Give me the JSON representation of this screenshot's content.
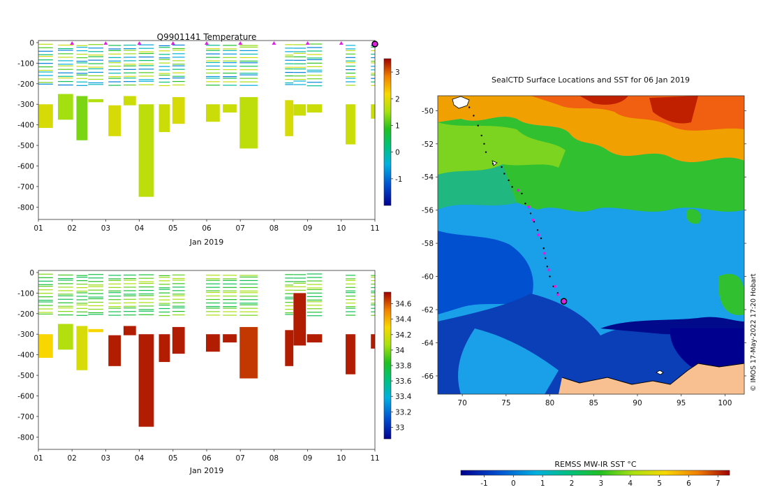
{
  "chart_data": [
    {
      "type": "heatmap",
      "title": "Q9901141  Temperature",
      "xlabel": "Jan 2019",
      "x_ticks": [
        "01",
        "02",
        "03",
        "04",
        "05",
        "06",
        "07",
        "08",
        "09",
        "10",
        "11"
      ],
      "y_ticks": [
        "0",
        "-100",
        "-200",
        "-300",
        "-400",
        "-500",
        "-600",
        "-700",
        "-800"
      ],
      "ylim": [
        -860,
        10
      ],
      "colorbar": {
        "ticks": [
          "3",
          "2",
          "1",
          "0",
          "-1"
        ],
        "range": [
          -2,
          3.5
        ]
      },
      "markers_day": [
        2,
        3,
        4,
        5,
        6,
        7,
        8,
        9,
        10
      ],
      "current_marker_day": 11,
      "profiles": [
        {
          "day": 1.0,
          "width": 0.55,
          "surface": [
            -195,
            -210
          ],
          "bottom": -415,
          "deep": [
            -300,
            -415
          ],
          "deep_value": 1.9
        },
        {
          "day": 1.6,
          "width": 0.55,
          "surface": [
            -10,
            -60,
            -120
          ],
          "bottom": -375,
          "deep": [
            -250,
            -375
          ],
          "deep_value": 1.5
        },
        {
          "day": 2.15,
          "width": 0.4,
          "surface": [
            -30,
            -110,
            -140
          ],
          "bottom": -475,
          "deep": [
            -260,
            -475
          ],
          "deep_value": 1.3
        },
        {
          "day": 2.5,
          "width": 0.55,
          "surface": [
            -20,
            -90
          ],
          "bottom": -290,
          "deep": [
            -275,
            -290
          ],
          "deep_value": 1.6
        },
        {
          "day": 3.1,
          "width": 0.45,
          "surface": [
            -5,
            -60,
            -150
          ],
          "bottom": -455,
          "deep": [
            -305,
            -455
          ],
          "deep_value": 1.9
        },
        {
          "day": 3.55,
          "width": 0.45,
          "surface": [
            -60,
            -140
          ],
          "bottom": -305,
          "deep": [
            -260,
            -305
          ],
          "deep_value": 1.8
        },
        {
          "day": 4.0,
          "width": 0.55,
          "surface": [
            -20,
            -90
          ],
          "bottom": -750,
          "deep": [
            -300,
            -750
          ],
          "deep_value": 1.7
        },
        {
          "day": 4.6,
          "width": 0.4,
          "surface": [
            -100,
            -180
          ],
          "bottom": -435,
          "deep": [
            -300,
            -435
          ],
          "deep_value": 1.8
        },
        {
          "day": 5.0,
          "width": 0.45,
          "surface": [
            -5,
            -110
          ],
          "bottom": -395,
          "deep": [
            -265,
            -395
          ],
          "deep_value": 1.9
        },
        {
          "day": 6.0,
          "width": 0.5,
          "surface": [
            -5,
            -100
          ],
          "bottom": -385,
          "deep": [
            -300,
            -385
          ],
          "deep_value": 1.8
        },
        {
          "day": 6.5,
          "width": 0.5,
          "surface": [
            -60,
            -130
          ],
          "bottom": -340,
          "deep": [
            -300,
            -340
          ],
          "deep_value": 1.8
        },
        {
          "day": 7.0,
          "width": 0.65,
          "surface": [
            -5,
            -90
          ],
          "bottom": -515,
          "deep": [
            -265,
            -515
          ],
          "deep_value": 1.7
        },
        {
          "day": 8.35,
          "width": 0.3,
          "surface": [
            -60,
            -120
          ],
          "bottom": -455,
          "deep": [
            -280,
            -455
          ],
          "deep_value": 1.9
        },
        {
          "day": 8.6,
          "width": 0.45,
          "surface": [
            0,
            -60,
            -120,
            -200,
            -300
          ],
          "bottom": -355,
          "deep": [
            -300,
            -355
          ],
          "deep_value": 1.8
        },
        {
          "day": 9.0,
          "width": 0.55,
          "surface": [
            -5,
            -100
          ],
          "bottom": -340,
          "deep": [
            -300,
            -340
          ],
          "deep_value": 1.8
        },
        {
          "day": 10.15,
          "width": 0.35,
          "surface": [
            -10,
            -80
          ],
          "bottom": -495,
          "deep": [
            -300,
            -495
          ],
          "deep_value": 1.8
        },
        {
          "day": 10.9,
          "width": 0.15,
          "surface": [
            -10
          ],
          "bottom": -370,
          "deep": [
            -300,
            -370
          ],
          "deep_value": 1.8
        }
      ]
    },
    {
      "type": "heatmap",
      "title": "",
      "xlabel": "Jan 2019",
      "x_ticks": [
        "01",
        "02",
        "03",
        "04",
        "05",
        "06",
        "07",
        "08",
        "09",
        "10",
        "11"
      ],
      "y_ticks": [
        "0",
        "-100",
        "-200",
        "-300",
        "-400",
        "-500",
        "-600",
        "-700",
        "-800"
      ],
      "ylim": [
        -860,
        10
      ],
      "colorbar": {
        "ticks": [
          "34.6",
          "34.4",
          "34.2",
          "34",
          "33.8",
          "33.6",
          "33.4",
          "33.2",
          "33"
        ],
        "range": [
          32.85,
          34.75
        ]
      },
      "profiles": [
        {
          "day": 1.0,
          "width": 0.55,
          "bottom": -415,
          "deep": [
            -300,
            -415
          ],
          "deep_value": 34.3
        },
        {
          "day": 1.6,
          "width": 0.55,
          "bottom": -375,
          "deep": [
            -250,
            -375
          ],
          "deep_value": 34.1
        },
        {
          "day": 2.15,
          "width": 0.4,
          "bottom": -475,
          "deep": [
            -260,
            -475
          ],
          "deep_value": 34.2
        },
        {
          "day": 2.5,
          "width": 0.55,
          "bottom": -290,
          "deep": [
            -275,
            -290
          ],
          "deep_value": 34.3
        },
        {
          "day": 3.1,
          "width": 0.45,
          "bottom": -455,
          "deep": [
            -305,
            -455
          ],
          "deep_value": 34.7
        },
        {
          "day": 3.55,
          "width": 0.45,
          "bottom": -305,
          "deep": [
            -260,
            -305
          ],
          "deep_value": 34.7
        },
        {
          "day": 4.0,
          "width": 0.55,
          "bottom": -750,
          "deep": [
            -300,
            -750
          ],
          "deep_value": 34.7
        },
        {
          "day": 4.6,
          "width": 0.4,
          "bottom": -435,
          "deep": [
            -300,
            -435
          ],
          "deep_value": 34.7
        },
        {
          "day": 5.0,
          "width": 0.45,
          "bottom": -395,
          "deep": [
            -265,
            -395
          ],
          "deep_value": 34.7
        },
        {
          "day": 6.0,
          "width": 0.5,
          "bottom": -385,
          "deep": [
            -300,
            -385
          ],
          "deep_value": 34.7
        },
        {
          "day": 6.5,
          "width": 0.5,
          "bottom": -340,
          "deep": [
            -300,
            -340
          ],
          "deep_value": 34.7
        },
        {
          "day": 7.0,
          "width": 0.65,
          "bottom": -515,
          "deep": [
            -265,
            -515
          ],
          "deep_value": 34.65
        },
        {
          "day": 8.35,
          "width": 0.3,
          "bottom": -455,
          "deep": [
            -280,
            -455
          ],
          "deep_value": 34.7
        },
        {
          "day": 8.6,
          "width": 0.45,
          "bottom": -355,
          "deep": [
            -100,
            -355
          ],
          "deep_value": 34.7
        },
        {
          "day": 9.0,
          "width": 0.55,
          "bottom": -340,
          "deep": [
            -300,
            -340
          ],
          "deep_value": 34.7
        },
        {
          "day": 10.15,
          "width": 0.35,
          "bottom": -495,
          "deep": [
            -300,
            -495
          ],
          "deep_value": 34.7
        },
        {
          "day": 10.9,
          "width": 0.15,
          "bottom": -370,
          "deep": [
            -300,
            -370
          ],
          "deep_value": 34.7
        }
      ]
    },
    {
      "type": "heatmap",
      "title": "SealCTD Surface Locations and SST for 06 Jan 2019",
      "x_ticks": [
        "70",
        "75",
        "80",
        "85",
        "90",
        "95",
        "100"
      ],
      "x_values": [
        70,
        75,
        80,
        85,
        90,
        95,
        100
      ],
      "xlim": [
        67.2,
        102.2
      ],
      "y_ticks": [
        "-50",
        "-52",
        "-54",
        "-56",
        "-58",
        "-60",
        "-62",
        "-64",
        "-66"
      ],
      "y_values": [
        -50,
        -52,
        -54,
        -56,
        -58,
        -60,
        -62,
        -64,
        -66
      ],
      "ylim": [
        -67.1,
        -49.1
      ],
      "colorbar": {
        "label": "REMSS MW-IR SST °C",
        "ticks": [
          "-1",
          "0",
          "1",
          "2",
          "3",
          "4",
          "5",
          "6",
          "7"
        ],
        "range": [
          -1.8,
          7.4
        ]
      },
      "track_black": [
        [
          70.8,
          -49.8
        ],
        [
          71.3,
          -50.3
        ],
        [
          71.8,
          -50.9
        ],
        [
          72.2,
          -51.5
        ],
        [
          72.5,
          -52.0
        ],
        [
          72.7,
          -52.5
        ],
        [
          73.5,
          -53.2
        ],
        [
          74.5,
          -53.4
        ],
        [
          74.8,
          -53.8
        ],
        [
          75.3,
          -54.2
        ],
        [
          75.7,
          -54.6
        ],
        [
          76.8,
          -55.0
        ],
        [
          77.2,
          -55.6
        ],
        [
          77.8,
          -56.2
        ],
        [
          78.2,
          -56.7
        ],
        [
          78.6,
          -57.2
        ],
        [
          79.0,
          -57.7
        ],
        [
          79.3,
          -58.3
        ],
        [
          79.5,
          -58.9
        ],
        [
          79.7,
          -59.4
        ],
        [
          80.0,
          -60.0
        ],
        [
          80.4,
          -60.6
        ],
        [
          80.9,
          -61.0
        ]
      ],
      "track_magenta": [
        [
          76.4,
          -54.8
        ],
        [
          77.6,
          -55.8
        ],
        [
          78.1,
          -56.6
        ],
        [
          78.7,
          -57.5
        ],
        [
          79.4,
          -58.6
        ],
        [
          79.9,
          -59.6
        ],
        [
          80.6,
          -60.6
        ],
        [
          80.9,
          -61.1
        ]
      ],
      "current_position": [
        81.6,
        -61.5
      ]
    }
  ],
  "watermark": "© IMOS 17-May-2022 17:20 Hobart"
}
